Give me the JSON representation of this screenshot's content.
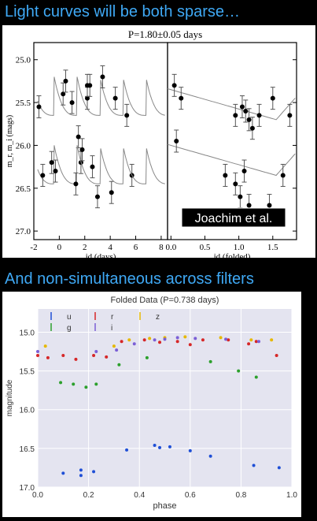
{
  "slide": {
    "heading_top": "Light curves will be both sparse…",
    "heading_bottom": "And non-simultaneous across filters"
  },
  "chart_data": [
    {
      "type": "scatter",
      "title": "P=1.80±0.05 days",
      "credit": "Joachim et al.",
      "ylabel": "m_r, m_i (mags)",
      "ylim": [
        27.1,
        24.8
      ],
      "yticks": [
        "25.0",
        "25.5",
        "26.0",
        "26.5",
        "27.0"
      ],
      "panels": [
        {
          "xlabel": "jd (days)",
          "xlim": [
            -2,
            8.5
          ],
          "xticks": [
            "-2",
            "0",
            "2",
            "4",
            "6",
            "8"
          ],
          "series": [
            {
              "values": [
                [
                  1.5,
                  25.9
                ],
                [
                  1.7,
                  26.2
                ],
                [
                  2.2,
                  25.45
                ],
                [
                  2.4,
                  25.3
                ],
                [
                  3.0,
                  26.6
                ],
                [
                  3.4,
                  25.2
                ],
                [
                  4.1,
                  26.55
                ],
                [
                  4.4,
                  25.45
                ],
                [
                  5.3,
                  25.65
                ],
                [
                  5.7,
                  26.35
                ]
              ]
            },
            {
              "values": [
                [
                  -1.6,
                  25.55
                ],
                [
                  -1.3,
                  26.35
                ],
                [
                  -0.6,
                  26.2
                ],
                [
                  -0.3,
                  26.3
                ],
                [
                  0.3,
                  25.4
                ],
                [
                  0.5,
                  25.25
                ],
                [
                  1.0,
                  25.5
                ],
                [
                  1.3,
                  26.45
                ],
                [
                  1.8,
                  26.05
                ],
                [
                  2.2,
                  25.3
                ],
                [
                  2.6,
                  26.25
                ]
              ]
            }
          ]
        },
        {
          "xlabel": "jd (folded)",
          "xlim": [
            -0.05,
            1.85
          ],
          "xticks": [
            "0.0",
            "0.5",
            "1.0",
            "1.5"
          ],
          "series": [
            {
              "values": [
                [
                  0.05,
                  25.3
                ],
                [
                  0.15,
                  25.45
                ],
                [
                  0.95,
                  25.65
                ],
                [
                  1.05,
                  25.55
                ],
                [
                  1.1,
                  25.6
                ],
                [
                  1.15,
                  25.7
                ],
                [
                  1.2,
                  25.8
                ],
                [
                  1.3,
                  25.65
                ],
                [
                  1.5,
                  25.45
                ],
                [
                  1.75,
                  25.65
                ]
              ]
            },
            {
              "values": [
                [
                  0.08,
                  25.95
                ],
                [
                  0.8,
                  26.35
                ],
                [
                  0.95,
                  26.45
                ],
                [
                  1.02,
                  26.6
                ],
                [
                  1.08,
                  26.3
                ],
                [
                  1.15,
                  26.7
                ],
                [
                  1.45,
                  26.7
                ],
                [
                  1.65,
                  26.35
                ]
              ]
            }
          ]
        }
      ]
    },
    {
      "type": "scatter",
      "title": "Folded Data (P=0.738 days)",
      "xlabel": "phase",
      "ylabel": "magnitude",
      "xlim": [
        0.0,
        1.0
      ],
      "ylim": [
        17.0,
        14.7
      ],
      "xticks": [
        "0.0",
        "0.2",
        "0.4",
        "0.6",
        "0.8",
        "1.0"
      ],
      "yticks": [
        "15.0",
        "15.5",
        "16.0",
        "16.5",
        "17.0"
      ],
      "legend_placement": "top-left",
      "series": [
        {
          "name": "u",
          "color": "#1f4fd6",
          "values": [
            [
              0.1,
              16.82
            ],
            [
              0.17,
              16.85
            ],
            [
              0.17,
              16.78
            ],
            [
              0.22,
              16.8
            ],
            [
              0.35,
              16.52
            ],
            [
              0.46,
              16.46
            ],
            [
              0.48,
              16.49
            ],
            [
              0.52,
              16.48
            ],
            [
              0.6,
              16.53
            ],
            [
              0.68,
              16.6
            ],
            [
              0.85,
              16.72
            ],
            [
              0.95,
              16.75
            ]
          ]
        },
        {
          "name": "g",
          "color": "#2ca02c",
          "values": [
            [
              0.09,
              15.65
            ],
            [
              0.14,
              15.67
            ],
            [
              0.19,
              15.71
            ],
            [
              0.23,
              15.67
            ],
            [
              0.32,
              15.42
            ],
            [
              0.43,
              15.33
            ],
            [
              0.68,
              15.38
            ],
            [
              0.79,
              15.5
            ],
            [
              0.86,
              15.58
            ]
          ]
        },
        {
          "name": "r",
          "color": "#d62728",
          "values": [
            [
              0.0,
              15.3
            ],
            [
              0.04,
              15.33
            ],
            [
              0.1,
              15.3
            ],
            [
              0.15,
              15.35
            ],
            [
              0.22,
              15.3
            ],
            [
              0.27,
              15.32
            ],
            [
              0.33,
              15.12
            ],
            [
              0.42,
              15.1
            ],
            [
              0.48,
              15.13
            ],
            [
              0.55,
              15.12
            ],
            [
              0.6,
              15.16
            ],
            [
              0.65,
              15.1
            ],
            [
              0.75,
              15.1
            ],
            [
              0.83,
              15.15
            ],
            [
              0.86,
              15.12
            ],
            [
              0.94,
              15.3
            ]
          ]
        },
        {
          "name": "z",
          "color": "#e6b800",
          "values": [
            [
              0.03,
              15.18
            ],
            [
              0.3,
              15.18
            ],
            [
              0.36,
              15.1
            ],
            [
              0.44,
              15.08
            ],
            [
              0.5,
              15.07
            ],
            [
              0.58,
              15.06
            ],
            [
              0.72,
              15.07
            ],
            [
              0.84,
              15.1
            ],
            [
              0.92,
              15.1
            ]
          ]
        },
        {
          "name": "i",
          "color": "#7b5fd6",
          "values": [
            [
              0.0,
              15.25
            ],
            [
              0.23,
              15.25
            ],
            [
              0.31,
              15.23
            ],
            [
              0.38,
              15.15
            ],
            [
              0.46,
              15.1
            ],
            [
              0.5,
              15.09
            ],
            [
              0.55,
              15.07
            ],
            [
              0.62,
              15.08
            ],
            [
              0.74,
              15.09
            ],
            [
              0.87,
              15.12
            ]
          ]
        }
      ]
    }
  ]
}
